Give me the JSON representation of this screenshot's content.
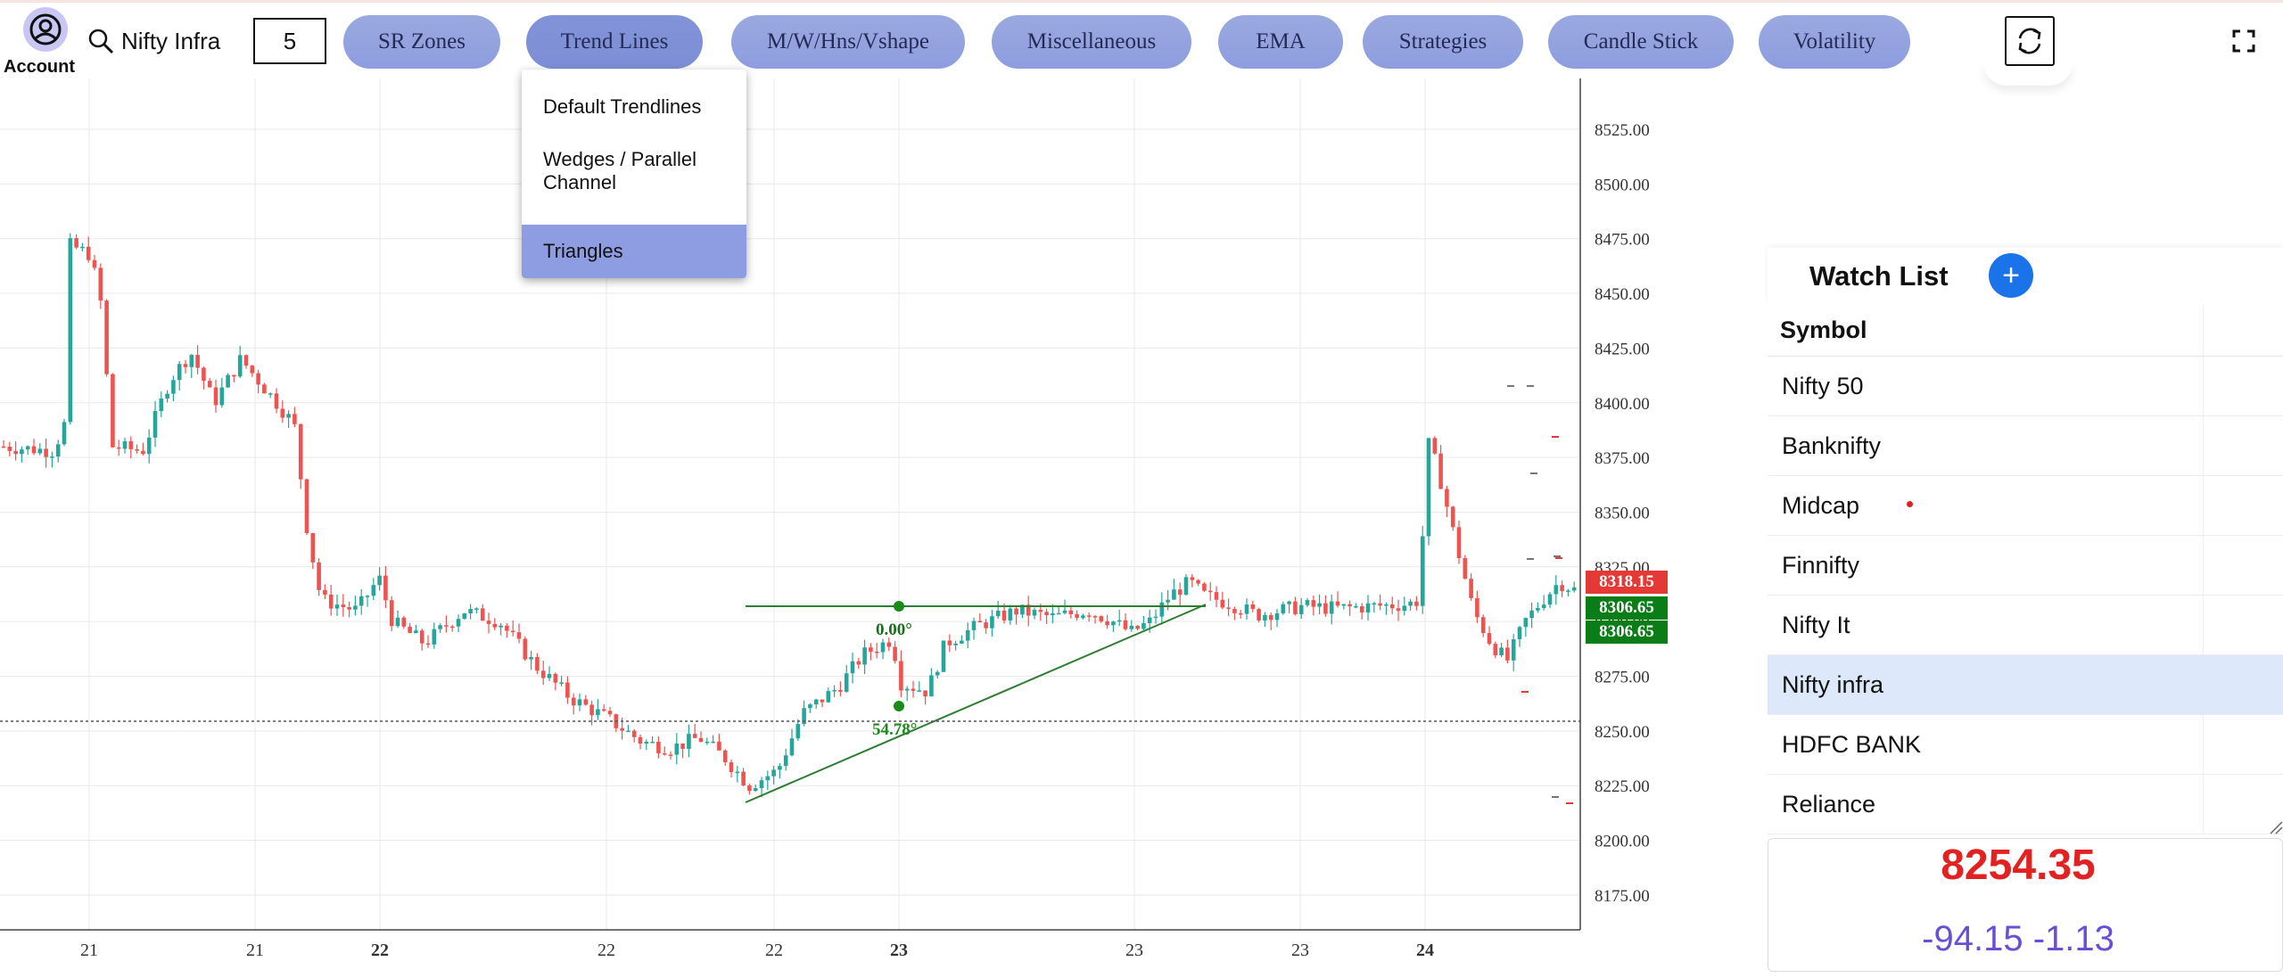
{
  "header": {
    "account_label": "Account",
    "symbol": "Nifty Infra",
    "interval": "5",
    "menu": [
      {
        "label": "SR Zones"
      },
      {
        "label": "Trend Lines"
      },
      {
        "label": "M/W/Hns/Vshape"
      },
      {
        "label": "Miscellaneous"
      },
      {
        "label": "EMA"
      },
      {
        "label": "Strategies"
      },
      {
        "label": "Candle Stick"
      },
      {
        "label": "Volatility"
      }
    ],
    "active_menu": "Trend Lines"
  },
  "trendlines_dropdown": {
    "items": [
      {
        "label": "Default Trendlines",
        "selected": false
      },
      {
        "label": "Wedges / Parallel Channel",
        "selected": false
      },
      {
        "label": "Triangles",
        "selected": true
      }
    ]
  },
  "chart": {
    "price_axis": [
      "8525.00",
      "8500.00",
      "8475.00",
      "8450.00",
      "8425.00",
      "8400.00",
      "8375.00",
      "8350.00",
      "8325.00",
      "8300.00",
      "8275.00",
      "8250.00",
      "8225.00",
      "8200.00",
      "8175.00"
    ],
    "time_axis": [
      {
        "label": "21",
        "bold": false
      },
      {
        "label": "21",
        "bold": false
      },
      {
        "label": "22",
        "bold": true
      },
      {
        "label": "22",
        "bold": false
      },
      {
        "label": "22",
        "bold": false
      },
      {
        "label": "23",
        "bold": true
      },
      {
        "label": "23",
        "bold": false
      },
      {
        "label": "23",
        "bold": false
      },
      {
        "label": "24",
        "bold": true
      }
    ],
    "price_tags": [
      {
        "text": "8318.15",
        "color": "#e53935"
      },
      {
        "text": "8306.65",
        "color": "#0a7d17"
      },
      {
        "text": "8306.65",
        "color": "#0a7d17"
      }
    ],
    "annotations": {
      "horizontal_angle": "0.00°",
      "rising_angle": "54.78°"
    },
    "colors": {
      "up": "#26a69a",
      "down": "#ef5350",
      "trendline": "#2e7d32"
    }
  },
  "watchlist": {
    "title": "Watch List",
    "add_symbol": "+",
    "column_header": "Symbol",
    "items": [
      {
        "name": "Nifty 50"
      },
      {
        "name": "Banknifty"
      },
      {
        "name": "Midcap"
      },
      {
        "name": "Finnifty"
      },
      {
        "name": "Nifty It"
      },
      {
        "name": "Nifty infra"
      },
      {
        "name": "HDFC BANK"
      },
      {
        "name": "Reliance"
      }
    ],
    "highlighted": "Nifty infra"
  },
  "quote": {
    "price": "8254.35",
    "change": "-94.15",
    "change_pct": "-1.13"
  }
}
